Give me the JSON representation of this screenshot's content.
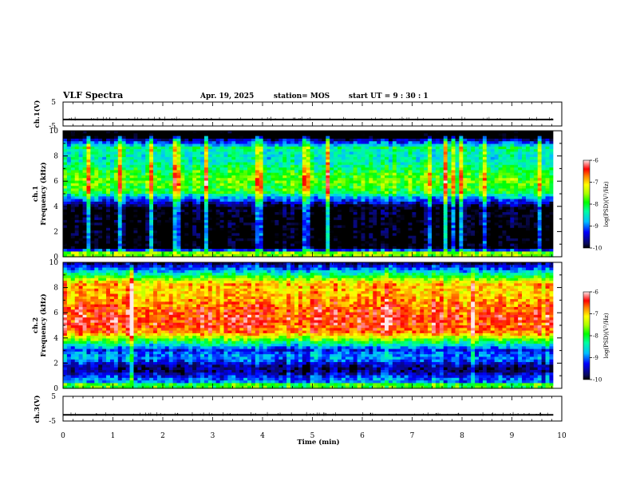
{
  "header": {
    "title": "VLF Spectra",
    "date": "Apr. 19, 2025",
    "station": "station= MOS",
    "start": "start  UT =   9  : 30 : 1"
  },
  "chart_data": {
    "type": "heatmap",
    "xlabel": "Time  (min)",
    "xlim": [
      0,
      10
    ],
    "xticks": [
      "0",
      "1",
      "2",
      "3",
      "4",
      "5",
      "6",
      "7",
      "8",
      "9",
      "10"
    ],
    "data_end_min": 9.83,
    "panels": [
      {
        "id": "ch1-voltage",
        "type": "line",
        "ylabel": "ch.1(V)",
        "ylim": [
          -5,
          5
        ],
        "yticks": [
          "5",
          "-5"
        ],
        "level": -2.3
      },
      {
        "id": "ch1-spectrogram",
        "type": "heatmap",
        "ylabel_top": "ch.1",
        "ylabel": "Frequency  (kHz)",
        "ylim": [
          0,
          10
        ],
        "yticks": [
          "0",
          "2",
          "4",
          "6",
          "8",
          "10"
        ],
        "colorbar": {
          "label": "log(PSD)(V²/Hz)",
          "range": [
            -10,
            -6
          ],
          "ticks": [
            "-6",
            "-7",
            "-8",
            "-9",
            "-10"
          ]
        }
      },
      {
        "id": "ch2-spectrogram",
        "type": "heatmap",
        "ylabel_top": "ch.2",
        "ylabel": "Frequency  (kHz)",
        "ylim": [
          0,
          10
        ],
        "yticks": [
          "0",
          "2",
          "4",
          "6",
          "8",
          "10"
        ],
        "colorbar": {
          "label": "log(PSD)(V²/Hz)",
          "range": [
            -10,
            -6
          ],
          "ticks": [
            "-6",
            "-7",
            "-8",
            "-9",
            "-10"
          ]
        }
      },
      {
        "id": "ch3-voltage",
        "type": "line",
        "ylabel": "ch.3(V)",
        "ylim": [
          -5,
          5
        ],
        "yticks": [
          "5",
          "-5"
        ],
        "level": -2.5
      }
    ]
  }
}
